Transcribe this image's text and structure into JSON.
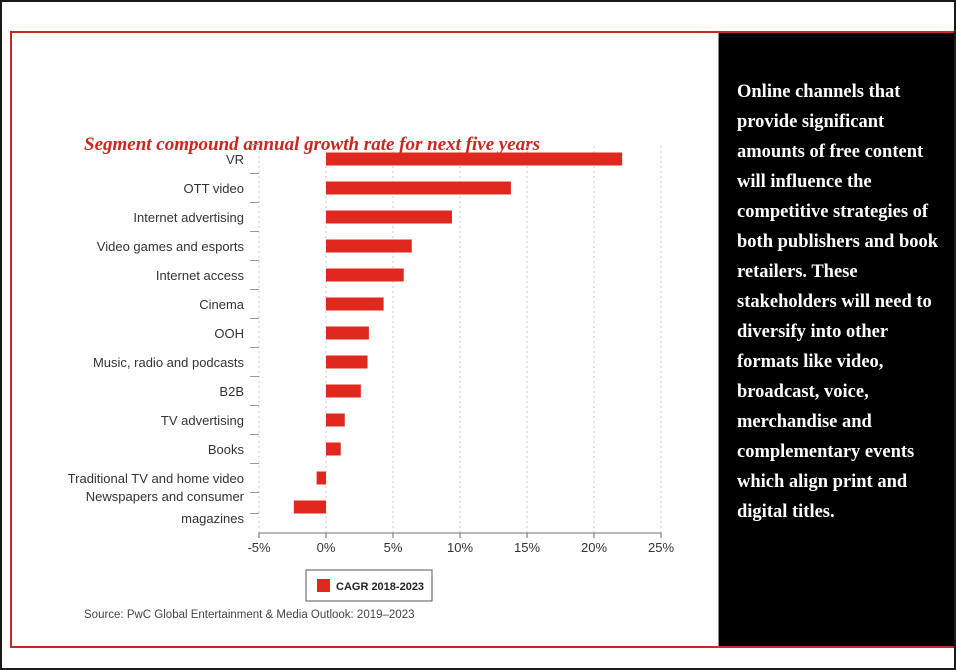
{
  "side_panel": {
    "text": "Online channels that provide significant amounts of free content will influence the competitive strategies of both publishers and book retailers. These stakeholders will need to diversify into other formats like video, broadcast, voice, merchandise and complementary events which align print and digital titles."
  },
  "colors": {
    "accent": "#c8281e",
    "bar": "#e0291e",
    "panel_bg": "#000000"
  },
  "chart_data": {
    "type": "bar",
    "orientation": "horizontal",
    "title": "Segment compound annual growth rate for next five years",
    "categories": [
      "VR",
      "OTT video",
      "Internet advertising",
      "Video games and esports",
      "Internet access",
      "Cinema",
      "OOH",
      "Music, radio and podcasts",
      "B2B",
      "TV advertising",
      "Books",
      "Traditional TV and home video",
      "Newspapers and consumer magazines"
    ],
    "series": [
      {
        "name": "CAGR 2018-2023",
        "values": [
          22.1,
          13.8,
          9.4,
          6.4,
          5.8,
          4.3,
          3.2,
          3.1,
          2.6,
          1.4,
          1.1,
          -0.7,
          -2.4
        ]
      }
    ],
    "xticks": [
      "-5%",
      "0%",
      "5%",
      "10%",
      "15%",
      "20%",
      "25%"
    ],
    "xlim": [
      -5,
      25
    ],
    "grid": "vertical dotted",
    "legend": "bottom-center",
    "source": "Source: PwC Global Entertainment & Media Outlook: 2019–2023"
  }
}
